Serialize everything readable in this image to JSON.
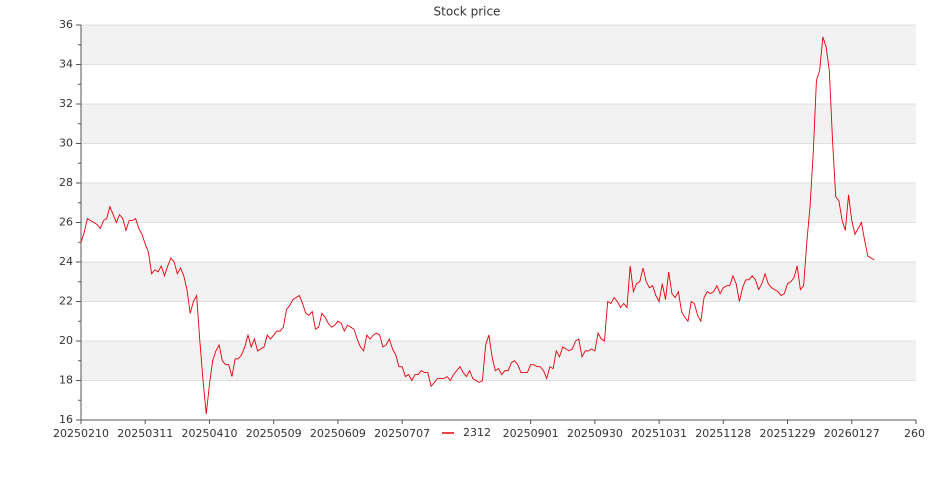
{
  "chart_data": {
    "type": "line",
    "title": "Stock price",
    "x": [
      0,
      1,
      2,
      3,
      4,
      5,
      6,
      7,
      8,
      9,
      10,
      11,
      12,
      13,
      14,
      15,
      16,
      17,
      18,
      19,
      20,
      21,
      22,
      23,
      24,
      25,
      26,
      27,
      28,
      29,
      30,
      31,
      32,
      33,
      34,
      35,
      36,
      37,
      38,
      39,
      40,
      41,
      42,
      43,
      44,
      45,
      46,
      47,
      48,
      49,
      50,
      51,
      52,
      53,
      54,
      55,
      56,
      57,
      58,
      59,
      60,
      61,
      62,
      63,
      64,
      65,
      66,
      67,
      68,
      69,
      70,
      71,
      72,
      73,
      74,
      75,
      76,
      77,
      78,
      79,
      80,
      81,
      82,
      83,
      84,
      85,
      86,
      87,
      88,
      89,
      90,
      91,
      92,
      93,
      94,
      95,
      96,
      97,
      98,
      99,
      100,
      101,
      102,
      103,
      104,
      105,
      106,
      107,
      108,
      109,
      110,
      111,
      112,
      113,
      114,
      115,
      116,
      117,
      118,
      119,
      120,
      121,
      122,
      123,
      124,
      125,
      126,
      127,
      128,
      129,
      130,
      131,
      132,
      133,
      134,
      135,
      136,
      137,
      138,
      139,
      140,
      141,
      142,
      143,
      144,
      145,
      146,
      147,
      148,
      149,
      150,
      151,
      152,
      153,
      154,
      155,
      156,
      157,
      158,
      159,
      160,
      161,
      162,
      163,
      164,
      165,
      166,
      167,
      168,
      169,
      170,
      171,
      172,
      173,
      174,
      175,
      176,
      177,
      178,
      179,
      180,
      181,
      182,
      183,
      184,
      185,
      186,
      187,
      188,
      189,
      190,
      191,
      192,
      193,
      194,
      195,
      196,
      197,
      198,
      199,
      200,
      201,
      202,
      203,
      204,
      205,
      206,
      207,
      208,
      209,
      210,
      211,
      212,
      213,
      214,
      215,
      216,
      217,
      218,
      219,
      220,
      221,
      222,
      223,
      224,
      225,
      226,
      227,
      228,
      229,
      230,
      231,
      232,
      233,
      234,
      235,
      236,
      237,
      238,
      239,
      240,
      241,
      242,
      243,
      244,
      245,
      246,
      247
    ],
    "series": [
      {
        "name": "2312",
        "color": "#e8000b",
        "values": [
          25.0,
          25.5,
          26.2,
          26.1,
          26.0,
          25.9,
          25.7,
          26.1,
          26.2,
          26.8,
          26.4,
          26.0,
          26.4,
          26.2,
          25.6,
          26.1,
          26.1,
          26.2,
          25.7,
          25.4,
          24.9,
          24.5,
          23.4,
          23.6,
          23.5,
          23.8,
          23.3,
          23.8,
          24.2,
          24.0,
          23.4,
          23.7,
          23.3,
          22.6,
          21.4,
          22.0,
          22.3,
          20.0,
          18.0,
          16.3,
          17.8,
          19.0,
          19.5,
          19.8,
          19.0,
          18.8,
          18.8,
          18.2,
          19.1,
          19.1,
          19.3,
          19.7,
          20.3,
          19.7,
          20.1,
          19.5,
          19.6,
          19.7,
          20.3,
          20.1,
          20.3,
          20.5,
          20.5,
          20.7,
          21.6,
          21.8,
          22.1,
          22.2,
          22.3,
          21.9,
          21.4,
          21.3,
          21.5,
          20.6,
          20.7,
          21.4,
          21.2,
          20.9,
          20.7,
          20.8,
          21.0,
          20.9,
          20.5,
          20.8,
          20.7,
          20.6,
          20.1,
          19.7,
          19.5,
          20.3,
          20.1,
          20.3,
          20.4,
          20.3,
          19.7,
          19.8,
          20.1,
          19.6,
          19.3,
          18.7,
          18.7,
          18.2,
          18.3,
          18.0,
          18.3,
          18.3,
          18.5,
          18.4,
          18.4,
          17.7,
          17.9,
          18.1,
          18.1,
          18.1,
          18.2,
          18.0,
          18.3,
          18.5,
          18.7,
          18.4,
          18.2,
          18.5,
          18.1,
          18.0,
          17.9,
          18.0,
          19.8,
          20.3,
          19.2,
          18.5,
          18.6,
          18.3,
          18.5,
          18.5,
          18.9,
          19.0,
          18.8,
          18.4,
          18.4,
          18.4,
          18.8,
          18.8,
          18.7,
          18.7,
          18.5,
          18.1,
          18.7,
          18.6,
          19.5,
          19.2,
          19.7,
          19.6,
          19.5,
          19.6,
          20.0,
          20.1,
          19.2,
          19.5,
          19.5,
          19.6,
          19.5,
          20.4,
          20.1,
          20.0,
          22.0,
          21.9,
          22.2,
          22.0,
          21.7,
          21.9,
          21.7,
          23.8,
          22.5,
          22.9,
          23.0,
          23.7,
          23.0,
          22.7,
          22.8,
          22.3,
          22.0,
          22.9,
          22.1,
          23.5,
          22.4,
          22.2,
          22.5,
          21.5,
          21.2,
          21.0,
          22.0,
          21.9,
          21.3,
          21.0,
          22.2,
          22.5,
          22.4,
          22.5,
          22.8,
          22.4,
          22.7,
          22.8,
          22.8,
          23.3,
          22.9,
          22.0,
          22.7,
          23.1,
          23.1,
          23.3,
          23.1,
          22.6,
          22.9,
          23.4,
          22.9,
          22.7,
          22.6,
          22.5,
          22.3,
          22.4,
          22.9,
          23.0,
          23.2,
          23.8,
          22.6,
          22.8,
          25.0,
          26.8,
          29.5,
          33.2,
          33.7,
          35.4,
          34.9,
          33.7,
          30.2,
          27.3,
          27.1,
          26.1,
          25.6,
          27.4,
          26.1,
          25.4,
          25.7,
          26.0,
          25.1,
          24.3,
          24.2,
          24.1
        ]
      }
    ],
    "xlim": [
      0,
      260
    ],
    "xticks": [
      {
        "value": 0,
        "label": "20250210"
      },
      {
        "value": 20,
        "label": "20250311"
      },
      {
        "value": 40,
        "label": "20250410"
      },
      {
        "value": 60,
        "label": "20250509"
      },
      {
        "value": 80,
        "label": "20250609"
      },
      {
        "value": 100,
        "label": "20250707"
      },
      {
        "value": 140,
        "label": "20250901"
      },
      {
        "value": 160,
        "label": "20250930"
      },
      {
        "value": 180,
        "label": "20251031"
      },
      {
        "value": 200,
        "label": "20251128"
      },
      {
        "value": 220,
        "label": "20251229"
      },
      {
        "value": 240,
        "label": "20260127"
      },
      260
    ],
    "ylim": [
      16,
      36
    ],
    "yticks": [
      16,
      18,
      20,
      22,
      24,
      26,
      28,
      30,
      32,
      34,
      36
    ],
    "grid": true,
    "legend": "bottom"
  }
}
